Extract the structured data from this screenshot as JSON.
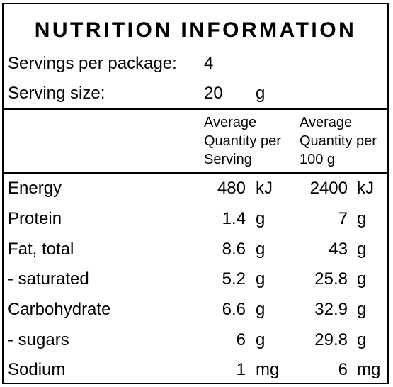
{
  "title": "NUTRITION INFORMATION",
  "servings_label": "Servings per package:",
  "servings_value": "4",
  "serving_size_label": "Serving size:",
  "serving_size_value": "20",
  "serving_size_unit": "g",
  "header": {
    "per_serving": [
      "Average",
      "Quantity per",
      "Serving"
    ],
    "per_100g": [
      "Average",
      "Quantity per",
      "100 g"
    ]
  },
  "rows": [
    {
      "name": "Energy",
      "serving": "480",
      "serving_unit": "kJ",
      "per100": "2400",
      "per100_unit": "kJ"
    },
    {
      "name": "Protein",
      "serving": "1.4",
      "serving_unit": "g",
      "per100": "7",
      "per100_unit": "g"
    },
    {
      "name": "Fat, total",
      "serving": "8.6",
      "serving_unit": "g",
      "per100": "43",
      "per100_unit": "g"
    },
    {
      "name": "- saturated",
      "serving": "5.2",
      "serving_unit": "g",
      "per100": "25.8",
      "per100_unit": "g"
    },
    {
      "name": "Carbohydrate",
      "serving": "6.6",
      "serving_unit": "g",
      "per100": "32.9",
      "per100_unit": "g"
    },
    {
      "name": "- sugars",
      "serving": "6",
      "serving_unit": "g",
      "per100": "29.8",
      "per100_unit": "g"
    },
    {
      "name": "Sodium",
      "serving": "1",
      "serving_unit": "mg",
      "per100": "6",
      "per100_unit": "mg"
    }
  ]
}
